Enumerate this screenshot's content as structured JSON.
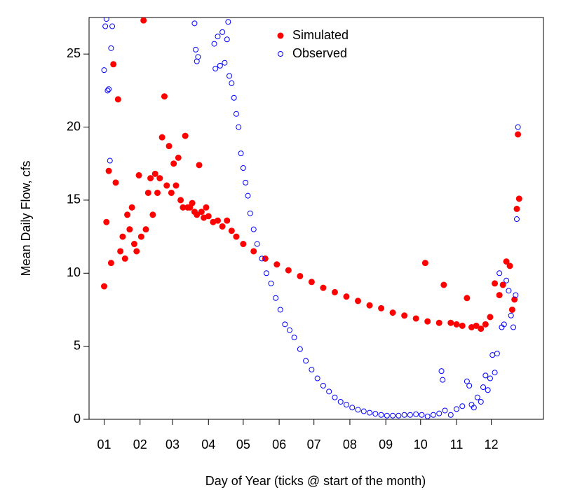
{
  "chart_data": {
    "type": "scatter",
    "x_label": "Day of Year (ticks @ start of the month)",
    "y_label": "Mean Daily Flow, cfs",
    "xlim": [
      -12,
      380
    ],
    "ylim": [
      0,
      27.5
    ],
    "xticks": [
      {
        "value": 1,
        "label": "01"
      },
      {
        "value": 32,
        "label": "02"
      },
      {
        "value": 60,
        "label": "03"
      },
      {
        "value": 91,
        "label": "04"
      },
      {
        "value": 121,
        "label": "05"
      },
      {
        "value": 152,
        "label": "06"
      },
      {
        "value": 182,
        "label": "07"
      },
      {
        "value": 213,
        "label": "08"
      },
      {
        "value": 244,
        "label": "09"
      },
      {
        "value": 274,
        "label": "10"
      },
      {
        "value": 305,
        "label": "11"
      },
      {
        "value": 335,
        "label": "12"
      }
    ],
    "yticks": [
      0,
      5,
      10,
      15,
      20,
      25
    ],
    "legend": "top",
    "series": [
      {
        "name": "Simulated",
        "color": "#ff0000",
        "marker": "filled",
        "x": [
          1,
          3,
          5,
          7,
          9,
          11,
          13,
          15,
          17,
          19,
          21,
          23,
          25,
          27,
          29,
          31,
          33,
          35,
          37,
          39,
          41,
          43,
          45,
          47,
          49,
          51,
          53,
          55,
          57,
          59,
          61,
          63,
          65,
          67,
          69,
          71,
          73,
          75,
          77,
          79,
          81,
          83,
          85,
          87,
          89,
          91,
          95,
          99,
          103,
          107,
          111,
          115,
          121,
          130,
          140,
          150,
          160,
          170,
          180,
          190,
          200,
          210,
          220,
          230,
          240,
          250,
          260,
          270,
          278,
          280,
          290,
          294,
          300,
          305,
          310,
          314,
          318,
          322,
          326,
          330,
          334,
          338,
          342,
          345,
          348,
          351,
          353,
          355,
          357,
          358,
          359
        ],
        "values": [
          9.1,
          13.5,
          17,
          10.7,
          24.3,
          16.2,
          21.9,
          11.5,
          12.5,
          11,
          14,
          13,
          14.5,
          12,
          11.5,
          16.7,
          12.5,
          27.3,
          13,
          15.5,
          16.5,
          14,
          16.8,
          15.5,
          16.5,
          19.3,
          22.1,
          16,
          18.7,
          15.5,
          17.5,
          16,
          17.9,
          15,
          14.5,
          19.4,
          14.5,
          14.5,
          14.8,
          14.2,
          14,
          17.4,
          14.2,
          13.8,
          14.5,
          13.9,
          13.5,
          13.6,
          13.2,
          13.6,
          12.9,
          12.5,
          12,
          11.5,
          11,
          10.6,
          10.2,
          9.8,
          9.4,
          9,
          8.7,
          8.4,
          8.1,
          7.8,
          7.6,
          7.3,
          7.1,
          6.9,
          10.7,
          6.7,
          6.6,
          9.2,
          6.6,
          6.5,
          6.4,
          8.3,
          6.3,
          6.4,
          6.2,
          6.5,
          7,
          9.3,
          8.5,
          9.2,
          10.8,
          10.5,
          7.5,
          8.2,
          14.4,
          19.5,
          15.1
        ]
      },
      {
        "name": "Observed",
        "color": "#0000ff",
        "marker": "open",
        "x": [
          1,
          2,
          3,
          4,
          5,
          6,
          7,
          8,
          79,
          80,
          81,
          82,
          96,
          97,
          99,
          101,
          103,
          105,
          107,
          108,
          109,
          111,
          113,
          115,
          117,
          119,
          121,
          123,
          125,
          127,
          130,
          133,
          137,
          141,
          145,
          149,
          153,
          157,
          161,
          165,
          170,
          175,
          180,
          185,
          190,
          195,
          200,
          205,
          210,
          215,
          220,
          225,
          230,
          235,
          240,
          245,
          250,
          255,
          260,
          265,
          270,
          275,
          280,
          285,
          290,
          292,
          293,
          295,
          300,
          305,
          310,
          314,
          316,
          318,
          320,
          323,
          326,
          328,
          330,
          332,
          334,
          336,
          338,
          340,
          342,
          344,
          346,
          348,
          350,
          352,
          354,
          356,
          357,
          358
        ],
        "values": [
          23.9,
          26.9,
          27.4,
          22.5,
          22.6,
          17.7,
          25.4,
          26.9,
          27.1,
          25.3,
          24.5,
          24.8,
          25.7,
          24,
          26.2,
          24.2,
          26.5,
          24.4,
          26,
          27.2,
          23.5,
          23,
          22,
          20.9,
          20,
          18.2,
          17.2,
          16.2,
          15.3,
          14.1,
          13,
          12,
          11,
          10,
          9.3,
          8.3,
          7.5,
          6.5,
          6.1,
          5.6,
          4.8,
          4,
          3.4,
          2.8,
          2.3,
          1.9,
          1.5,
          1.2,
          1,
          0.8,
          0.65,
          0.55,
          0.45,
          0.38,
          0.3,
          0.25,
          0.25,
          0.25,
          0.3,
          0.3,
          0.35,
          0.3,
          0.2,
          0.3,
          0.4,
          3.3,
          2.7,
          0.6,
          0.3,
          0.7,
          0.9,
          2.6,
          2.3,
          1,
          0.8,
          1.5,
          1.2,
          2.2,
          3,
          2,
          2.8,
          4.4,
          3.2,
          4.5,
          10,
          6.3,
          6.5,
          9.5,
          8.8,
          7.1,
          6.3,
          8.5,
          13.7,
          20
        ]
      }
    ]
  }
}
